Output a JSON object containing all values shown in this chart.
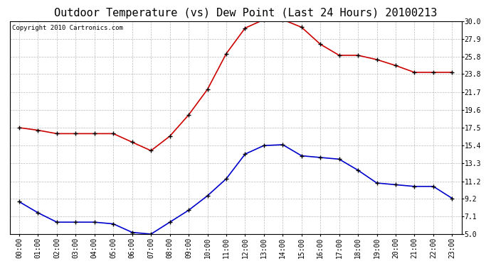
{
  "title": "Outdoor Temperature (vs) Dew Point (Last 24 Hours) 20100213",
  "copyright_text": "Copyright 2010 Cartronics.com",
  "x_labels": [
    "00:00",
    "01:00",
    "02:00",
    "03:00",
    "04:00",
    "05:00",
    "06:00",
    "07:00",
    "08:00",
    "09:00",
    "10:00",
    "11:00",
    "12:00",
    "13:00",
    "14:00",
    "15:00",
    "16:00",
    "17:00",
    "18:00",
    "19:00",
    "20:00",
    "21:00",
    "22:00",
    "23:00"
  ],
  "temp_red": [
    17.5,
    17.2,
    16.8,
    16.8,
    16.8,
    16.8,
    15.8,
    14.8,
    16.5,
    19.0,
    22.0,
    26.2,
    29.2,
    30.2,
    30.2,
    29.3,
    27.3,
    26.0,
    26.0,
    25.5,
    24.8,
    24.0,
    24.0,
    24.0
  ],
  "dew_blue": [
    8.8,
    7.5,
    6.4,
    6.4,
    6.4,
    6.2,
    5.2,
    5.0,
    6.4,
    7.8,
    9.5,
    11.5,
    14.4,
    15.4,
    15.5,
    14.2,
    14.0,
    13.8,
    12.5,
    11.0,
    10.8,
    10.6,
    10.6,
    9.2
  ],
  "y_ticks": [
    5.0,
    7.1,
    9.2,
    11.2,
    13.3,
    15.4,
    17.5,
    19.6,
    21.7,
    23.8,
    25.8,
    27.9,
    30.0
  ],
  "ylim": [
    5.0,
    30.0
  ],
  "bg_color": "#ffffff",
  "plot_bg_color": "#ffffff",
  "grid_color": "#bbbbbb",
  "red_color": "#cc0000",
  "blue_color": "#0000cc",
  "title_fontsize": 11,
  "copyright_fontsize": 6.5,
  "tick_fontsize": 7,
  "ytick_fontsize": 7
}
